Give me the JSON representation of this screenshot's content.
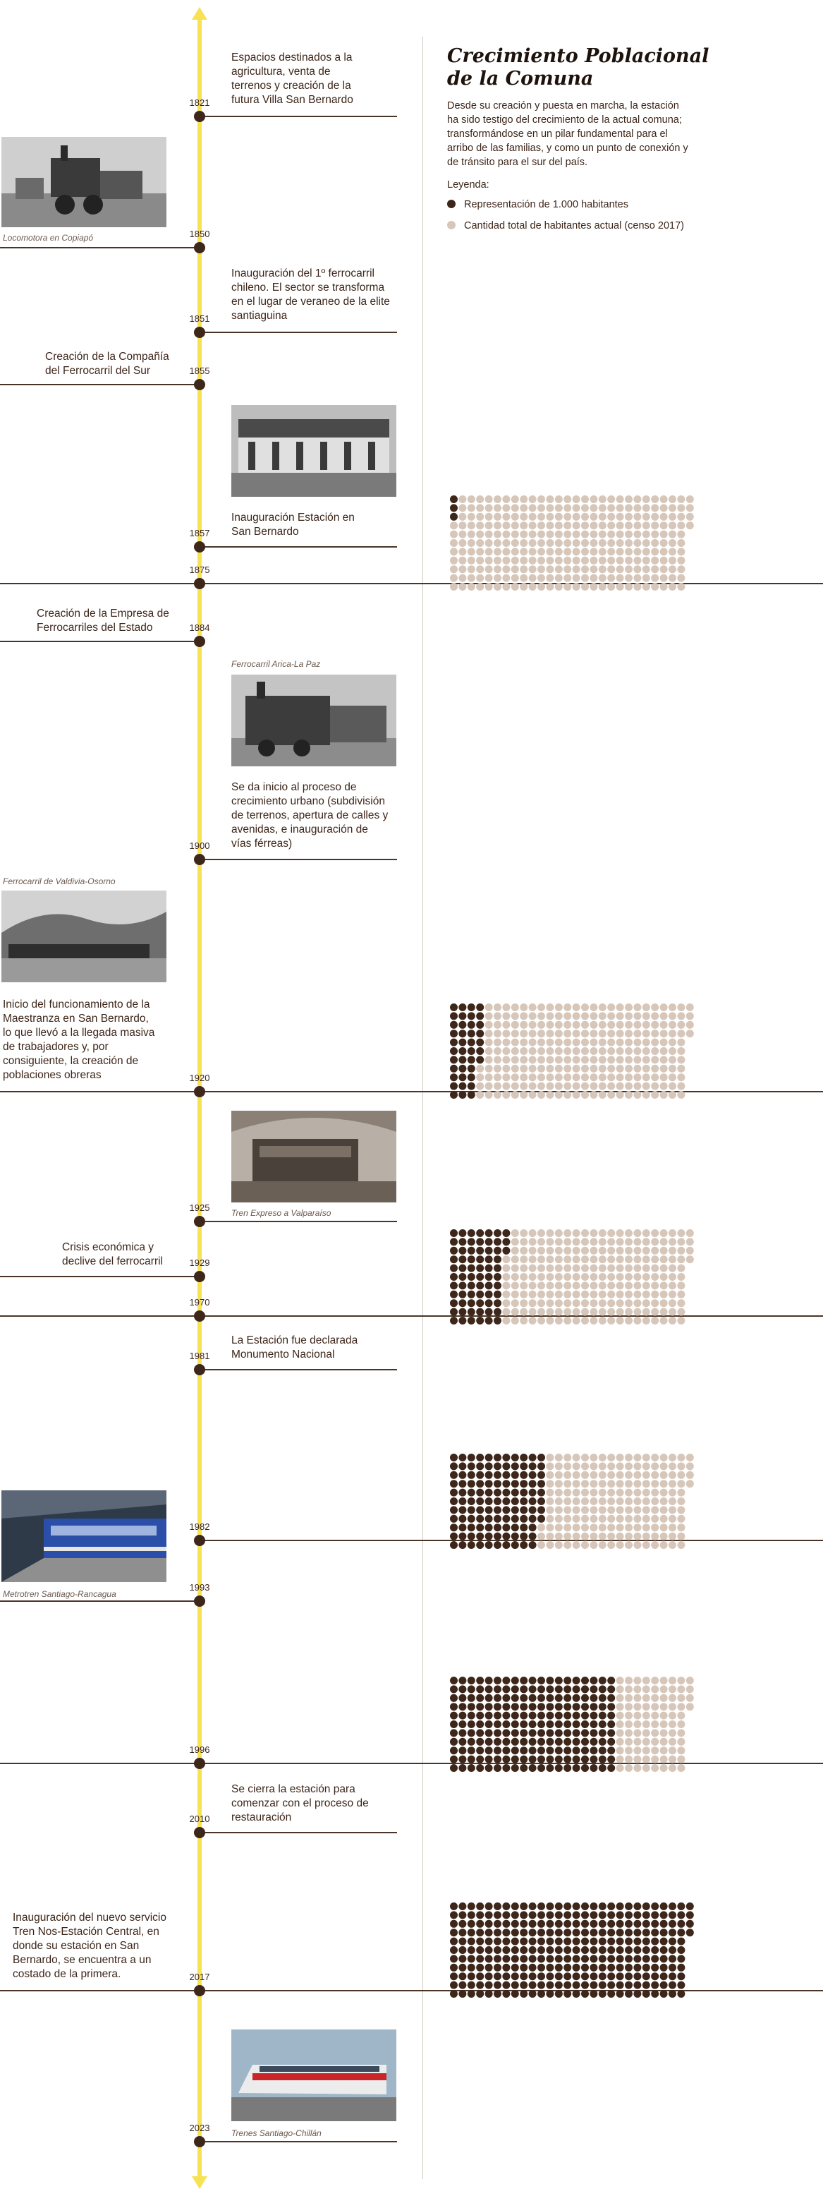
{
  "header": {
    "title_line1": "Crecimiento Poblacional",
    "title_line2": "de la Comuna",
    "intro": "Desde su creación y puesta en marcha, la estación ha sido testigo del crecimiento de la actual comuna; transformándose en un pilar fundamental para el arribo de las familias, y como un punto de conexión y de tránsito para el sur del país.",
    "legend_title": "Leyenda:",
    "legend": [
      {
        "label": "Representación de 1.000 habitantes",
        "color": "#3d261a"
      },
      {
        "label": "Cantidad total de habitantes actual (censo 2017)",
        "color": "#d6c7ba"
      }
    ]
  },
  "timeline": [
    {
      "year": "1821",
      "text": "Espacios destinados a la agricultura, venta de terrenos y creación de la futura Villa San Bernardo"
    },
    {
      "year": "1850",
      "caption": "Locomotora en Copiapó",
      "photo": "locomotive-photo"
    },
    {
      "year": "1851",
      "text": "Inauguración del 1º ferrocarril chileno. El sector se transforma en el lugar de veraneo de la elite santiaguina"
    },
    {
      "year": "1855",
      "text": "Creación de la Compañía del Ferrocarril del Sur"
    },
    {
      "year": "1857",
      "text": "Inauguración Estación en San Bernardo",
      "photo": "station-photo"
    },
    {
      "year": "1875"
    },
    {
      "year": "1884",
      "text": "Creación de la Empresa de Ferrocarriles del Estado"
    },
    {
      "year": "1900",
      "caption": "Ferrocarril Arica-La Paz",
      "text": "Se da inicio al proceso de crecimiento urbano (subdivisión de terrenos, apertura de calles y avenidas, e inauguración de vías férreas)"
    },
    {
      "year": "1920",
      "caption": "Ferrocarril de Valdivia-Osorno",
      "text": "Inicio del funcionamiento de la Maestranza en San Bernardo, lo que llevó a la llegada masiva de trabajadores y, por consiguiente, la creación de poblaciones obreras"
    },
    {
      "year": "1925",
      "caption": "Tren Expreso a Valparaíso"
    },
    {
      "year": "1929",
      "text": "Crisis económica y declive del ferrocarril"
    },
    {
      "year": "1970"
    },
    {
      "year": "1981",
      "text": "La Estación fue declarada Monumento Nacional"
    },
    {
      "year": "1982",
      "caption": "Metrotren Santiago-Rancagua"
    },
    {
      "year": "1993"
    },
    {
      "year": "1996"
    },
    {
      "year": "2010",
      "text": "Se cierra la estación para comenzar con el proceso de restauración"
    },
    {
      "year": "2017",
      "text": "Inauguración del nuevo servicio Tren Nos-Estación Central, en donde su estación en San Bernardo, se encuentra a un costado de la primera."
    },
    {
      "year": "2023",
      "caption": "Trenes Santiago-Chillán"
    }
  ],
  "chart_data": {
    "type": "waffle",
    "unit": 1000,
    "total_2017": 301,
    "grids": [
      {
        "year": "1875",
        "filled": 3
      },
      {
        "year": "1920",
        "filled": 40
      },
      {
        "year": "1970",
        "filled": 69
      },
      {
        "year": "1982",
        "filled": 118
      },
      {
        "year": "1996",
        "filled": 209
      },
      {
        "year": "2017",
        "filled": 301
      }
    ],
    "colors": {
      "filled": "#3d261a",
      "empty": "#d6c7ba"
    }
  }
}
